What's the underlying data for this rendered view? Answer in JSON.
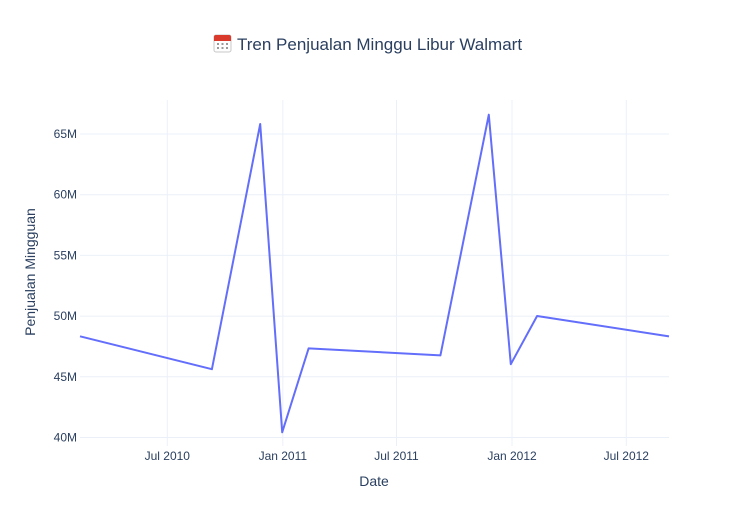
{
  "chart_data": {
    "type": "line",
    "title_icon": "calendar-icon",
    "title_text": "Tren Penjualan Minggu Libur Walmart",
    "xlabel": "Date",
    "ylabel": "Penjualan Mingguan",
    "x_tick_labels": [
      "Jul 2010",
      "Jan 2011",
      "Jul 2011",
      "Jan 2012",
      "Jul 2012"
    ],
    "y_tick_labels": [
      "40M",
      "45M",
      "50M",
      "55M",
      "60M",
      "65M"
    ],
    "y_tick_values": [
      40000000,
      45000000,
      50000000,
      55000000,
      60000000,
      65000000
    ],
    "ylim": [
      39300000,
      67800000
    ],
    "xlim": [
      "2010-02-12",
      "2012-09-07"
    ],
    "grid": true,
    "line_color": "#636efa",
    "series": [
      {
        "x": [
          "2010-02-12",
          "2010-09-10",
          "2010-11-26",
          "2010-12-31",
          "2011-02-11",
          "2011-09-09",
          "2011-11-25",
          "2011-12-30",
          "2012-02-10",
          "2012-09-07"
        ],
        "values": [
          48340000,
          45630000,
          65820000,
          40430000,
          47340000,
          46760000,
          66590000,
          46040000,
          50010000,
          48330000
        ]
      }
    ]
  }
}
